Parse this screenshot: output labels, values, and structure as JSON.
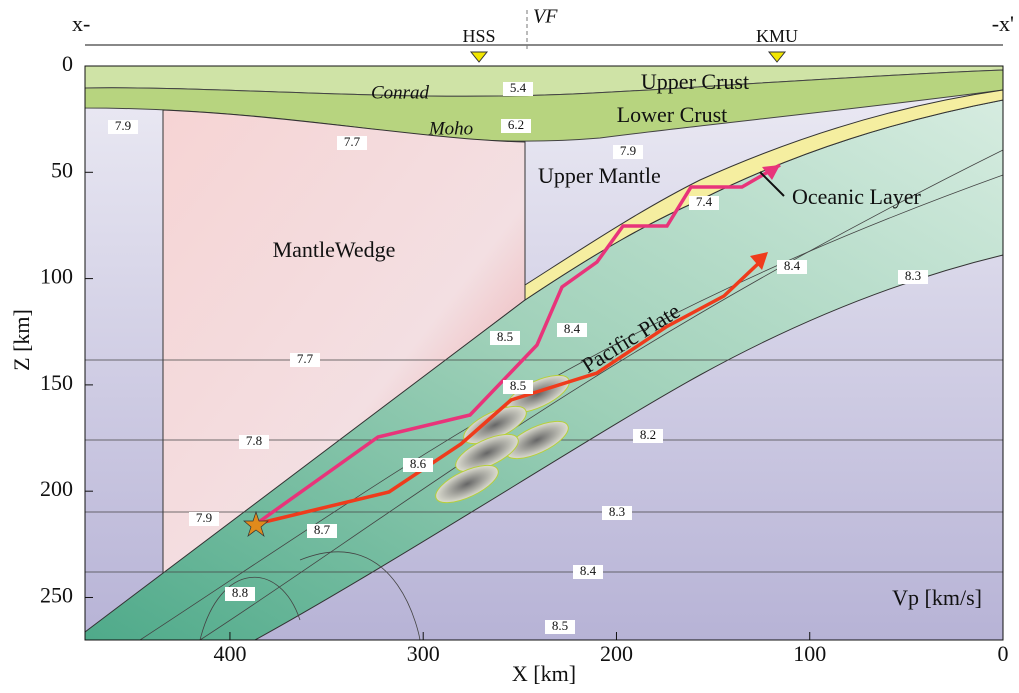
{
  "figure": {
    "left_label": "x-",
    "right_label": "-x'",
    "stations": [
      "HSS",
      "KMU"
    ],
    "fault_label": "VF",
    "x_axis": {
      "label": "X [km]",
      "lim": [
        475,
        0
      ],
      "ticks": [
        400,
        300,
        200,
        100,
        0
      ]
    },
    "y_axis": {
      "label": "Z [km]",
      "lim": [
        0,
        270
      ],
      "ticks": [
        0,
        50,
        100,
        150,
        200,
        250
      ]
    },
    "region_labels": [
      "Upper Crust",
      "Lower Crust",
      "Conrad",
      "Moho",
      "Upper Mantle",
      "MantleWedge",
      "Pacific Plate",
      "Oceanic Layer",
      "Vp [km/s]"
    ],
    "velocity_labels": [
      5.4,
      6.2,
      7.9,
      7.7,
      7.9,
      7.4,
      8.4,
      8.3,
      8.5,
      8.4,
      7.7,
      8.5,
      8.2,
      7.8,
      8.6,
      8.3,
      7.9,
      8.7,
      8.4,
      8.8,
      8.5
    ]
  }
}
